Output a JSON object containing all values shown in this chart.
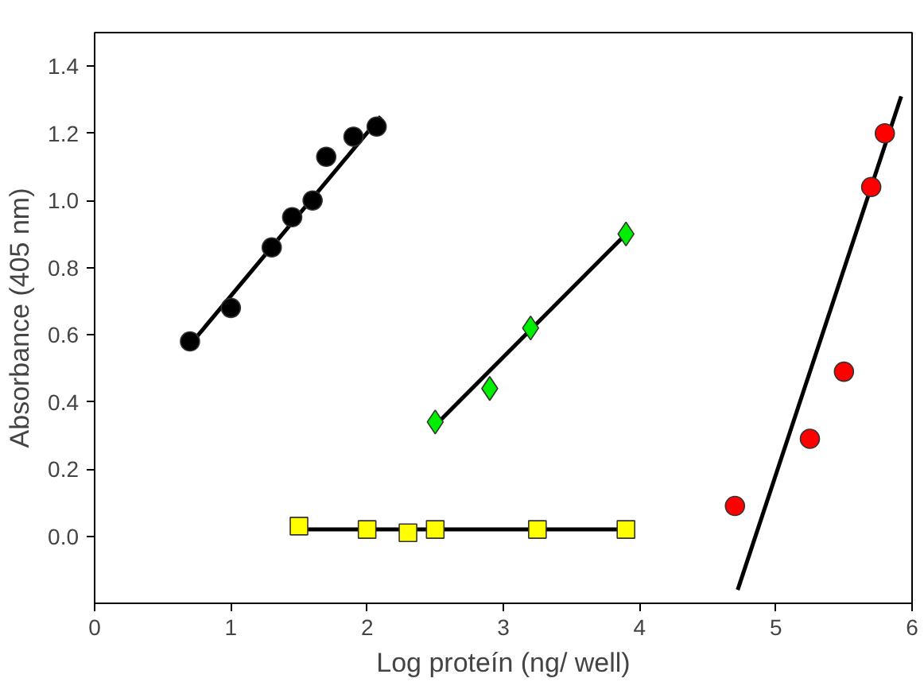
{
  "chart_data": {
    "type": "scatter",
    "xlabel": "Log proteín (ng/ well)",
    "ylabel": "Absorbance (405 nm)",
    "xlim": [
      0,
      6
    ],
    "ylim": [
      -0.2,
      1.5
    ],
    "xticks": [
      0,
      1,
      2,
      3,
      4,
      5,
      6
    ],
    "yticks": [
      {
        "value": 0,
        "label": "0.0"
      },
      0.2,
      0.4,
      0.6,
      0.8,
      {
        "value": 1,
        "label": "1.0"
      },
      1.2,
      1.4
    ],
    "grid": false,
    "series": [
      {
        "type": "line",
        "color": "#000000",
        "line_style": "solid",
        "x": [
          0.7,
          2.1
        ],
        "values": [
          0.57,
          1.25
        ]
      },
      {
        "type": "line",
        "color": "#000000",
        "line_style": "solid",
        "x": [
          2.5,
          3.9
        ],
        "values": [
          0.33,
          0.9
        ]
      },
      {
        "type": "line",
        "color": "#000000",
        "line_style": "solid",
        "x": [
          1.5,
          3.9
        ],
        "values": [
          0.02,
          0.02
        ]
      },
      {
        "type": "line",
        "color": "#000000",
        "line_style": "solid",
        "x": [
          4.72,
          5.92
        ],
        "values": [
          -0.16,
          1.31
        ]
      },
      {
        "color": "#000000",
        "marker": "circle",
        "x": [
          0.7,
          1.0,
          1.3,
          1.45,
          1.6,
          1.7,
          1.9,
          2.07
        ],
        "values": [
          0.58,
          0.68,
          0.86,
          0.95,
          1.0,
          1.13,
          1.19,
          1.22
        ]
      },
      {
        "color": "#00ee00",
        "marker": "diamond",
        "x": [
          2.5,
          2.9,
          3.2,
          3.9
        ],
        "values": [
          0.34,
          0.44,
          0.62,
          0.9
        ]
      },
      {
        "color": "#ffff00",
        "marker": "square",
        "x": [
          1.5,
          2.0,
          2.3,
          2.5,
          3.25,
          3.9
        ],
        "values": [
          0.03,
          0.02,
          0.01,
          0.02,
          0.02,
          0.02
        ]
      },
      {
        "color": "#ff0000",
        "marker": "circle",
        "x": [
          4.7,
          5.25,
          5.5,
          5.7,
          5.8
        ],
        "values": [
          0.09,
          0.29,
          0.49,
          1.04,
          1.2
        ]
      }
    ]
  }
}
